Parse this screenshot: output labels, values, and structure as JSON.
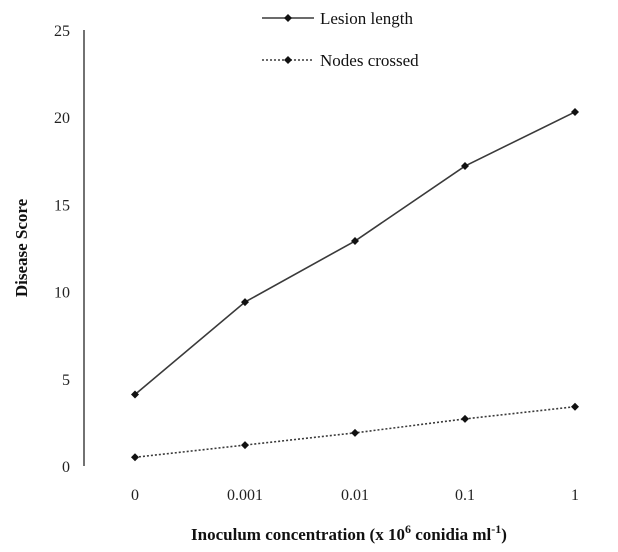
{
  "chart_data": {
    "type": "line",
    "categories": [
      "0",
      "0.001",
      "0.01",
      "0.1",
      "1"
    ],
    "series": [
      {
        "name": "Lesion length",
        "values": [
          4.1,
          9.4,
          12.9,
          17.2,
          20.3
        ],
        "line_style": "solid"
      },
      {
        "name": "Nodes crossed",
        "values": [
          0.5,
          1.2,
          1.9,
          2.7,
          3.4
        ],
        "line_style": "dotted"
      }
    ],
    "ylabel": "Disease Score",
    "xlabel": {
      "prefix": "Inoculum concentration (x 10",
      "sup1": "6",
      "middle": " conidia ml",
      "sup2": "-1",
      "suffix": ")"
    },
    "ylim": [
      0,
      25
    ],
    "yticks": [
      "0",
      "5",
      "10",
      "15",
      "20",
      "25"
    ],
    "grid": false,
    "legend_position": "top-center",
    "colors": {
      "line": "#3a3a3a",
      "marker": "#111111",
      "axis": "#444444"
    }
  }
}
